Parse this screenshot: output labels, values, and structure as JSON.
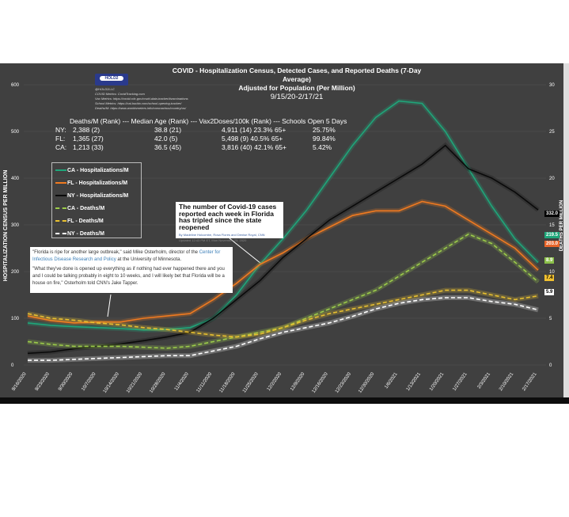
{
  "chart_data": {
    "type": "line",
    "title": "COVID - Hospitalization Census, Detected Cases, and Reported Deaths (7-Day Average)",
    "subtitle": "Adjusted for Population (Per Million)",
    "date_range": "9/15/20-2/17/21",
    "ylabel": "HOSPITALIZATION CENSUS PER MILLION",
    "y2label": "DEATHS PER MILLION",
    "ylim": [
      0,
      600
    ],
    "y2lim": [
      0,
      30
    ],
    "yticks": [
      "0",
      "100",
      "200",
      "300",
      "400",
      "500",
      "600"
    ],
    "y2ticks": [
      "0",
      "5",
      "10",
      "15",
      "20",
      "25",
      "30"
    ],
    "grid": true,
    "categories": [
      "9/16/2020",
      "9/23/2020",
      "9/30/2020",
      "10/7/2020",
      "10/14/2020",
      "10/21/2020",
      "10/28/2020",
      "11/4/2020",
      "11/11/2020",
      "11/18/2020",
      "11/25/2020",
      "12/2/2020",
      "12/9/2020",
      "12/16/2020",
      "12/23/2020",
      "12/30/2020",
      "1/6/2021",
      "1/13/2021",
      "1/20/2021",
      "1/27/2021",
      "2/3/2021",
      "2/10/2021",
      "2/17/2021"
    ],
    "series": [
      {
        "name": "CA - Hospitalizations/M",
        "axis": "left",
        "color": "#1fa67a",
        "dash": false,
        "values": [
          90,
          85,
          82,
          80,
          78,
          75,
          76,
          80,
          100,
          150,
          215,
          270,
          330,
          400,
          470,
          530,
          565,
          560,
          500,
          420,
          340,
          270,
          219.5
        ],
        "end_label": "219.5"
      },
      {
        "name": "FL - Hospitalizations/M",
        "axis": "left",
        "color": "#f07a20",
        "dash": false,
        "values": [
          105,
          95,
          90,
          92,
          92,
          100,
          105,
          110,
          140,
          175,
          215,
          240,
          270,
          295,
          320,
          330,
          330,
          350,
          340,
          310,
          280,
          250,
          203.0
        ],
        "end_label": "203.0"
      },
      {
        "name": "NY - Hospitalizations/M",
        "axis": "left",
        "color": "#0a0a0a",
        "dash": false,
        "values": [
          25,
          28,
          35,
          40,
          45,
          52,
          60,
          70,
          100,
          140,
          180,
          230,
          270,
          310,
          340,
          370,
          400,
          430,
          470,
          420,
          400,
          370,
          332.0
        ],
        "end_label": "332.0"
      },
      {
        "name": "CA - Deaths/M",
        "axis": "right",
        "color": "#9ccc4a",
        "dash": true,
        "values": [
          2.5,
          2.2,
          2,
          2,
          2,
          1.9,
          1.8,
          2,
          2.5,
          3,
          3.5,
          4,
          5,
          6,
          7,
          8,
          9.5,
          11,
          12.5,
          14,
          13,
          11,
          8.9
        ],
        "end_label": "8.9"
      },
      {
        "name": "FL - Deaths/M",
        "axis": "right",
        "color": "#e8c030",
        "dash": true,
        "values": [
          5.5,
          5,
          4.8,
          4.5,
          4.3,
          4,
          3.8,
          3.5,
          3.2,
          3,
          3.3,
          4,
          4.8,
          5.5,
          6,
          6.5,
          7,
          7.5,
          8,
          8,
          7.5,
          7,
          7.4
        ],
        "end_label": "7.4"
      },
      {
        "name": "NY - Deaths/M",
        "axis": "right",
        "color": "#ffffff",
        "dash": true,
        "values": [
          0.5,
          0.5,
          0.6,
          0.7,
          0.8,
          0.9,
          1,
          1,
          1.5,
          2,
          2.8,
          3.5,
          4,
          4.5,
          5.2,
          6,
          6.6,
          7,
          7.2,
          7.2,
          6.8,
          6.5,
          5.9
        ],
        "end_label": "5.9"
      }
    ]
  },
  "header": {
    "logo": "HOLD2",
    "handle": "@HOLD2LLC",
    "credits": [
      "COVID Metrics: CovidTracking.com",
      "Vax Metrics: https://covid.cdc.gov/covid-data-tracker/#vaccinations",
      "School Metrics: https://cai.burbio.com/school-opening-tracker/",
      "Deaths/M: https://www.worldometers.info/coronavirus/country/us/"
    ]
  },
  "stats": {
    "header": "Deaths/M (Rank) --- Median Age (Rank) --- Vax2Doses/100k (Rank) --- Schools Open 5 Days",
    "rows": [
      {
        "state": "NY:",
        "deaths": "2,388 (2)",
        "age": "38.8 (21)",
        "vax": "4,911 (14) 23.3% 65+",
        "schools": "25.75%"
      },
      {
        "state": "FL:",
        "deaths": "1,365 (27)",
        "age": "42.0 (5)",
        "vax": "5,498 (9) 40.5% 65+",
        "schools": "99.84%"
      },
      {
        "state": "CA:",
        "deaths": "1,213 (33)",
        "age": "36.5 (45)",
        "vax": "3,816 (40) 42.1% 65+",
        "schools": "5.42%"
      }
    ]
  },
  "cnn": {
    "headline": "The number of Covid-19 cases reported each week in Florida has tripled since the state reopened",
    "byline": "By Madeline Holcombe, Rosa Flores and Denise Royal, CNN",
    "updated": "Updated 12:43 PM ET, Mon November 23, 2020"
  },
  "quote": {
    "p1a": "\"Florida is ripe for another large outbreak,\" said Mike Osterholm, director of the ",
    "p1link": "Center for Infectious Disease Research and Policy",
    "p1b": " at the University of Minnesota.",
    "p2": "\"What they've done is opened up everything as if nothing had ever happened there and you and I could be talking probably in eight to 10 weeks, and I will likely bet that Florida will be a house on fire,\" Osterholm told CNN's Jake Tapper."
  }
}
